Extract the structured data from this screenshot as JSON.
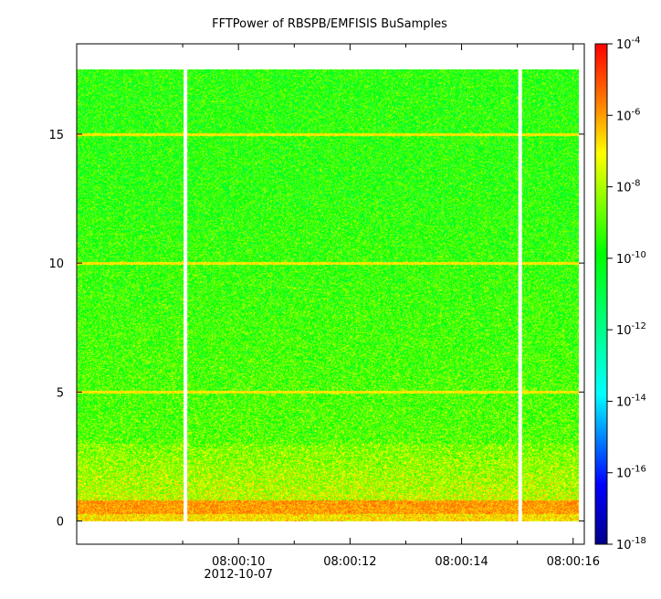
{
  "chart_data": {
    "type": "heatmap",
    "title": "FFTPower of RBSPB/EMFISIS  BuSamples",
    "xlabel": "",
    "ylabel": "",
    "x_axis": {
      "range_seconds": [
        7.1,
        16.2
      ],
      "ticks": [
        {
          "value": 10,
          "label": "08:00:10",
          "sublabel": "2012-10-07"
        },
        {
          "value": 12,
          "label": "08:00:12",
          "sublabel": ""
        },
        {
          "value": 14,
          "label": "08:00:14",
          "sublabel": ""
        },
        {
          "value": 16,
          "label": "08:00:16",
          "sublabel": ""
        }
      ],
      "minor_ticks": [
        9,
        11,
        13,
        15
      ]
    },
    "y_axis": {
      "range": [
        -0.9,
        18.5
      ],
      "ticks": [
        0,
        5,
        10,
        15
      ]
    },
    "data_extent": {
      "x": [
        7.1,
        16.1
      ],
      "y": [
        0,
        17.5
      ]
    },
    "gaps_x": [
      9.05,
      15.05
    ],
    "horizontal_lines_y": [
      5,
      10,
      15
    ],
    "colorbar": {
      "scale": "log",
      "range": [
        1e-18,
        0.0001
      ],
      "ticks": [
        {
          "value": -4,
          "base": "10",
          "exp": "-4"
        },
        {
          "value": -6,
          "base": "10",
          "exp": "-6"
        },
        {
          "value": -8,
          "base": "10",
          "exp": "-8"
        },
        {
          "value": -10,
          "base": "10",
          "exp": "-10"
        },
        {
          "value": -12,
          "base": "10",
          "exp": "-12"
        },
        {
          "value": -14,
          "base": "10",
          "exp": "-14"
        },
        {
          "value": -16,
          "base": "10",
          "exp": "-16"
        },
        {
          "value": -18,
          "base": "10",
          "exp": "-18"
        }
      ],
      "colors": [
        "#00008b",
        "#0000ff",
        "#00ffff",
        "#00ff00",
        "#ffff00",
        "#ff8000",
        "#ff0000"
      ]
    },
    "bands": [
      {
        "y_from": 0,
        "y_to": 0.3,
        "level": "orange-yellow"
      },
      {
        "y_from": 0.3,
        "y_to": 0.8,
        "level": "red-orange"
      },
      {
        "y_from": 0.8,
        "y_to": 3.0,
        "level": "yellow"
      },
      {
        "y_from": 3.0,
        "y_to": 17.5,
        "level": "green-yellow"
      }
    ],
    "grid": false,
    "legend": "colorbar-right"
  }
}
